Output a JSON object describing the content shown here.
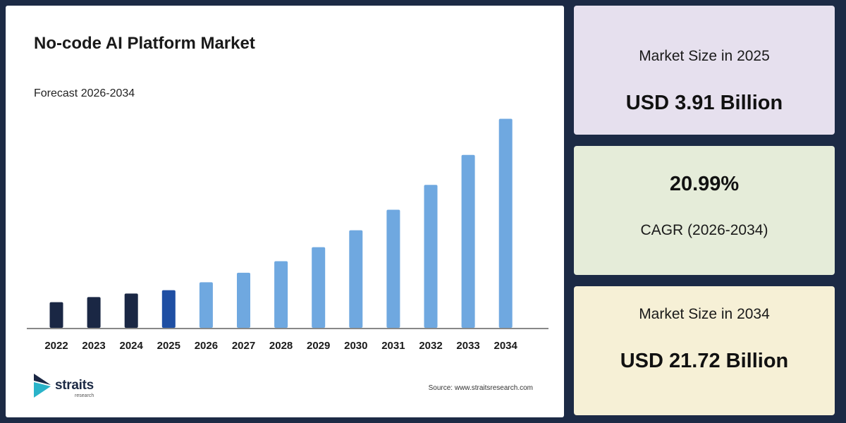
{
  "chart_data": {
    "type": "bar",
    "title": "No-code AI Platform Market",
    "subtitle": "Forecast 2026-2034",
    "categories": [
      "2022",
      "2023",
      "2024",
      "2025",
      "2026",
      "2027",
      "2028",
      "2029",
      "2030",
      "2031",
      "2032",
      "2033",
      "2034"
    ],
    "values": [
      2.66,
      3.2,
      3.56,
      3.91,
      4.73,
      5.72,
      6.92,
      8.38,
      10.14,
      12.27,
      14.85,
      17.96,
      21.72
    ],
    "bar_colors": [
      "#1a2744",
      "#1a2744",
      "#1a2744",
      "#1f4fa3",
      "#6fa8e0",
      "#6fa8e0",
      "#6fa8e0",
      "#6fa8e0",
      "#6fa8e0",
      "#6fa8e0",
      "#6fa8e0",
      "#6fa8e0",
      "#6fa8e0"
    ],
    "ylim": [
      0,
      23
    ],
    "xlabel": "",
    "ylabel": "",
    "grid": false
  },
  "logo": {
    "name": "straits",
    "sub": "research",
    "icon": "straits-logo-arrow-icon"
  },
  "source": "Source: www.straitsresearch.com",
  "kpis": [
    {
      "label": "Market Size in 2025",
      "value": "USD 3.91 Billion",
      "bg": "#e6e0ee"
    },
    {
      "label": "CAGR (2026-2034)",
      "value": "20.99%",
      "bg": "#e5ecd9"
    },
    {
      "label": "Market Size in 2034",
      "value": "USD 21.72 Billion",
      "bg": "#f6f0d6"
    }
  ]
}
